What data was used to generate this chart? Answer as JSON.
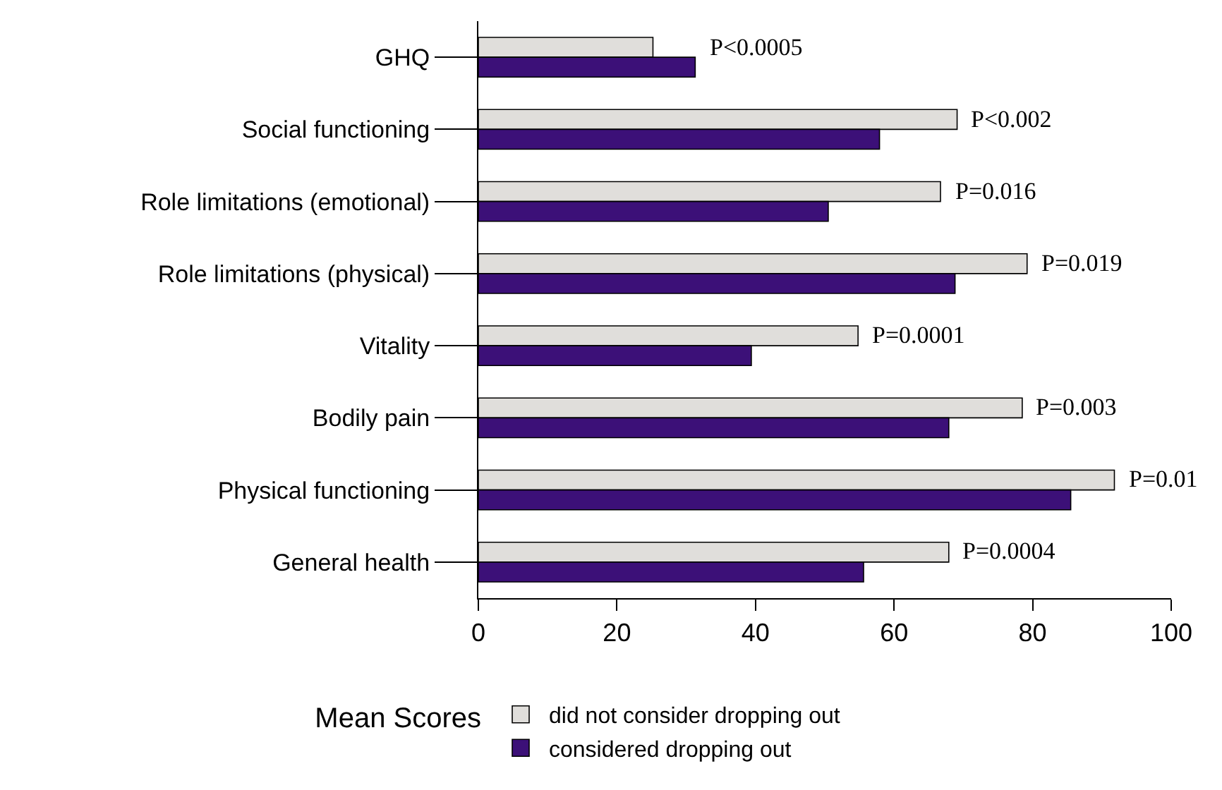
{
  "chart_data": {
    "type": "bar",
    "orientation": "horizontal",
    "categories": [
      "GHQ",
      "Social functioning",
      "Role limitations (emotional)",
      "Role limitations (physical)",
      "Vitality",
      "Bodily pain",
      "Physical functioning",
      "General health"
    ],
    "series": [
      {
        "name": "did not consider dropping out",
        "color": "#e0dedb",
        "values": [
          25.2,
          69.1,
          66.7,
          79.2,
          54.8,
          78.5,
          91.8,
          67.9
        ]
      },
      {
        "name": "considered dropping out",
        "color": "#3c1078",
        "values": [
          31.3,
          57.9,
          50.5,
          68.8,
          39.4,
          67.9,
          85.5,
          55.6
        ]
      }
    ],
    "xlim": [
      0,
      100
    ],
    "xticks": [
      0,
      20,
      40,
      60,
      80,
      100
    ],
    "legend_title": "Mean Scores",
    "legend": "bottom",
    "annotations": [
      "P<0.0005",
      "P<0.002",
      "P=0.016",
      "P=0.019",
      "P=0.0001",
      "P=0.003",
      "P=0.01",
      "P=0.0004"
    ]
  }
}
